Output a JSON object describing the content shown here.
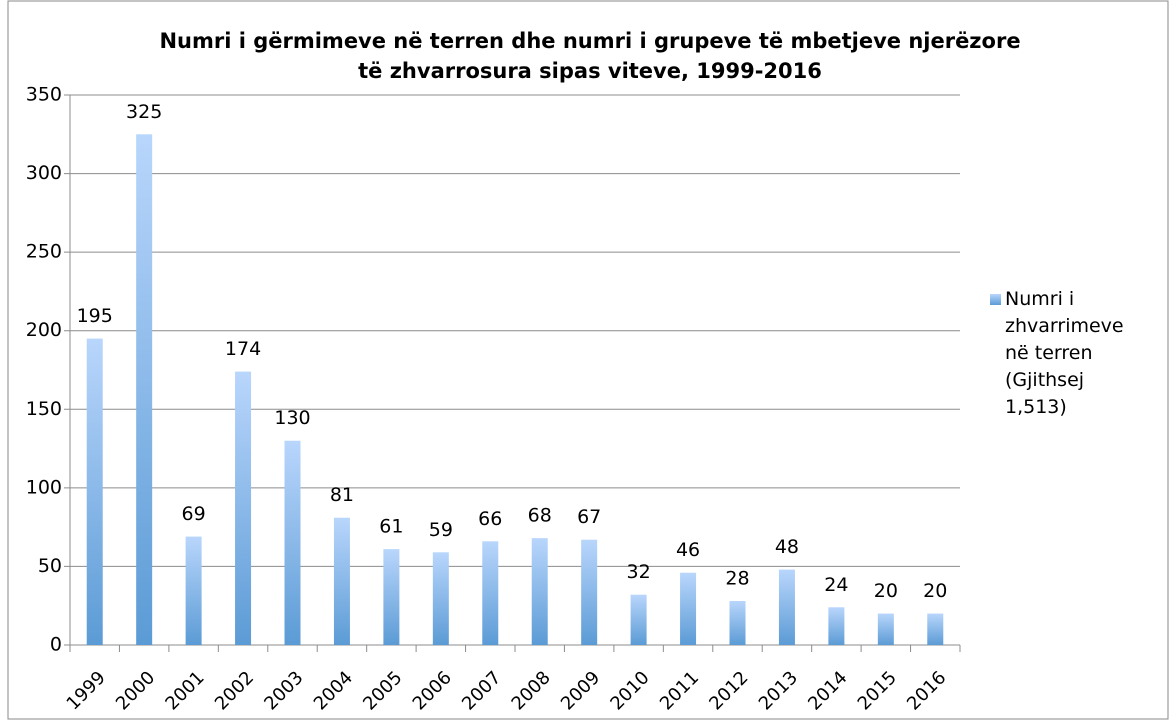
{
  "chart_data": {
    "type": "bar",
    "title": [
      "Numri i gërmimeve në terren dhe numri i grupeve të mbetjeve njerëzore",
      "të zhvarrosura sipas viteve, 1999-2016"
    ],
    "categories": [
      "1999",
      "2000",
      "2001",
      "2002",
      "2003",
      "2004",
      "2005",
      "2006",
      "2007",
      "2008",
      "2009",
      "2010",
      "2011",
      "2012",
      "2013",
      "2014",
      "2015",
      "2016"
    ],
    "series": [
      {
        "name": "Numri i zhvarrimeve në terren (Gjithsej 1,513)",
        "color": "#5b9bd5",
        "values": [
          195,
          325,
          69,
          174,
          130,
          81,
          61,
          59,
          66,
          68,
          67,
          32,
          46,
          28,
          48,
          24,
          20,
          20
        ]
      }
    ],
    "ylim": [
      0,
      350
    ],
    "yticks": [
      0,
      50,
      100,
      150,
      200,
      250,
      300,
      350
    ],
    "grid": true,
    "legend": "right"
  }
}
